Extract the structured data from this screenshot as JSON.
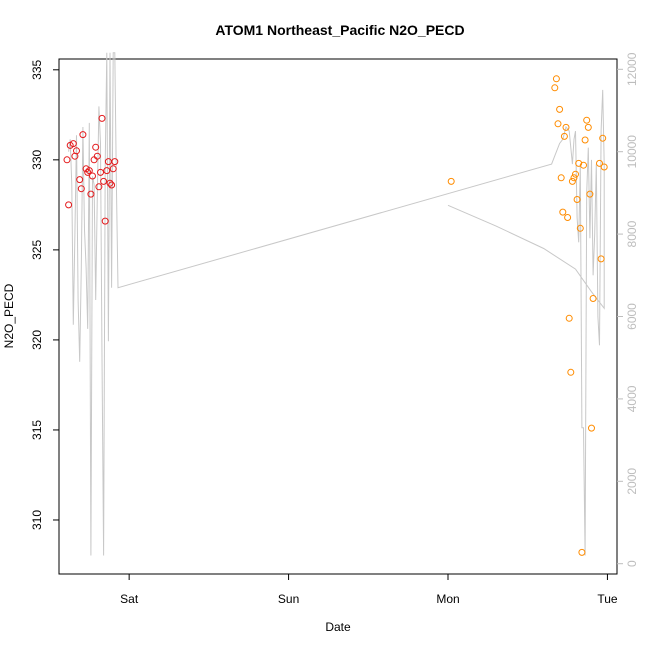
{
  "chart_data": {
    "type": "scatter",
    "title": "ATOM1 Northeast_Pacific N2O_PECD",
    "xlabel": "Date",
    "ylabel": "N2O_PECD",
    "x_ticks": [
      "Sat",
      "Sun",
      "Mon",
      "Tue"
    ],
    "x_tick_days": [
      1,
      2,
      3,
      4
    ],
    "xlim": [
      0.56,
      4.06
    ],
    "ylim": [
      307.0,
      335.6
    ],
    "y_ticks": [
      310,
      315,
      320,
      325,
      330,
      335
    ],
    "y2lim": [
      -250,
      12250
    ],
    "y2_ticks": [
      0,
      2000,
      4000,
      6000,
      8000,
      10000,
      12000
    ],
    "series": [
      {
        "color": "#e41a1c",
        "points": [
          [
            0.61,
            330.0
          ],
          [
            0.62,
            327.5
          ],
          [
            0.63,
            330.8
          ],
          [
            0.65,
            330.9
          ],
          [
            0.66,
            330.2
          ],
          [
            0.67,
            330.5
          ],
          [
            0.69,
            328.9
          ],
          [
            0.7,
            328.4
          ],
          [
            0.71,
            331.4
          ],
          [
            0.73,
            329.5
          ],
          [
            0.74,
            329.3
          ],
          [
            0.75,
            329.4
          ],
          [
            0.76,
            328.1
          ],
          [
            0.77,
            329.1
          ],
          [
            0.78,
            330.0
          ],
          [
            0.79,
            330.7
          ],
          [
            0.8,
            330.2
          ],
          [
            0.81,
            328.5
          ],
          [
            0.82,
            329.3
          ],
          [
            0.83,
            332.3
          ],
          [
            0.84,
            328.8
          ],
          [
            0.85,
            326.6
          ],
          [
            0.86,
            329.4
          ],
          [
            0.87,
            329.9
          ],
          [
            0.88,
            328.7
          ],
          [
            0.89,
            328.6
          ],
          [
            0.9,
            329.5
          ],
          [
            0.91,
            329.9
          ]
        ]
      },
      {
        "color": "#ff8c00",
        "points": [
          [
            3.02,
            328.8
          ],
          [
            3.67,
            334.0
          ],
          [
            3.68,
            334.5
          ],
          [
            3.69,
            332.0
          ],
          [
            3.7,
            332.8
          ],
          [
            3.71,
            329.0
          ],
          [
            3.72,
            327.1
          ],
          [
            3.73,
            331.3
          ],
          [
            3.74,
            331.8
          ],
          [
            3.75,
            326.8
          ],
          [
            3.76,
            321.2
          ],
          [
            3.77,
            318.2
          ],
          [
            3.78,
            328.8
          ],
          [
            3.79,
            329.0
          ],
          [
            3.8,
            329.2
          ],
          [
            3.81,
            327.8
          ],
          [
            3.82,
            329.8
          ],
          [
            3.83,
            326.2
          ],
          [
            3.84,
            308.2
          ],
          [
            3.85,
            329.7
          ],
          [
            3.86,
            331.1
          ],
          [
            3.87,
            332.2
          ],
          [
            3.88,
            331.8
          ],
          [
            3.89,
            328.1
          ],
          [
            3.9,
            315.1
          ],
          [
            3.91,
            322.3
          ],
          [
            3.95,
            329.8
          ],
          [
            3.96,
            324.5
          ],
          [
            3.97,
            331.2
          ],
          [
            3.98,
            329.6
          ]
        ]
      }
    ],
    "line_series": {
      "axis": "right",
      "color": "#c8c8c8",
      "points": [
        [
          0.62,
          10000
        ],
        [
          0.63,
          10300
        ],
        [
          0.64,
          9200
        ],
        [
          0.65,
          5800
        ],
        [
          0.66,
          8000
        ],
        [
          0.67,
          10400
        ],
        [
          0.68,
          6400
        ],
        [
          0.69,
          4900
        ],
        [
          0.7,
          7200
        ],
        [
          0.71,
          10600
        ],
        [
          0.72,
          8100
        ],
        [
          0.73,
          7200
        ],
        [
          0.74,
          5700
        ],
        [
          0.75,
          10700
        ],
        [
          0.76,
          200
        ],
        [
          0.77,
          9400
        ],
        [
          0.78,
          9200
        ],
        [
          0.79,
          6400
        ],
        [
          0.8,
          8900
        ],
        [
          0.81,
          11100
        ],
        [
          0.82,
          10200
        ],
        [
          0.83,
          5000
        ],
        [
          0.84,
          200
        ],
        [
          0.85,
          9700
        ],
        [
          0.86,
          12400
        ],
        [
          0.87,
          5400
        ],
        [
          0.88,
          12400
        ],
        [
          0.89,
          6700
        ],
        [
          0.9,
          12400
        ],
        [
          0.91,
          12400
        ],
        [
          0.92,
          9200
        ],
        [
          0.93,
          6700
        ],
        [
          3.65,
          9700
        ],
        [
          3.67,
          9900
        ],
        [
          3.7,
          10200
        ],
        [
          3.72,
          10300
        ],
        [
          3.74,
          10600
        ],
        [
          3.76,
          10500
        ],
        [
          3.77,
          10100
        ],
        [
          3.78,
          9700
        ],
        [
          3.79,
          10300
        ],
        [
          3.8,
          10500
        ],
        [
          3.81,
          8400
        ],
        [
          3.82,
          7800
        ],
        [
          3.83,
          9700
        ],
        [
          3.84,
          3300
        ],
        [
          3.85,
          3300
        ],
        [
          3.86,
          200
        ],
        [
          3.87,
          9000
        ],
        [
          3.88,
          10100
        ],
        [
          3.89,
          7900
        ],
        [
          3.9,
          9800
        ],
        [
          3.91,
          7000
        ],
        [
          3.92,
          8000
        ],
        [
          3.93,
          9700
        ],
        [
          3.94,
          6000
        ],
        [
          3.95,
          5300
        ],
        [
          3.96,
          10500
        ],
        [
          3.97,
          11500
        ],
        [
          3.98,
          9700
        ],
        [
          3.98,
          6200
        ],
        [
          3.9,
          6600
        ],
        [
          3.8,
          7150
        ],
        [
          3.6,
          7650
        ],
        [
          3.3,
          8200
        ],
        [
          3.0,
          8700
        ]
      ]
    },
    "grid": false,
    "legend": "none"
  }
}
